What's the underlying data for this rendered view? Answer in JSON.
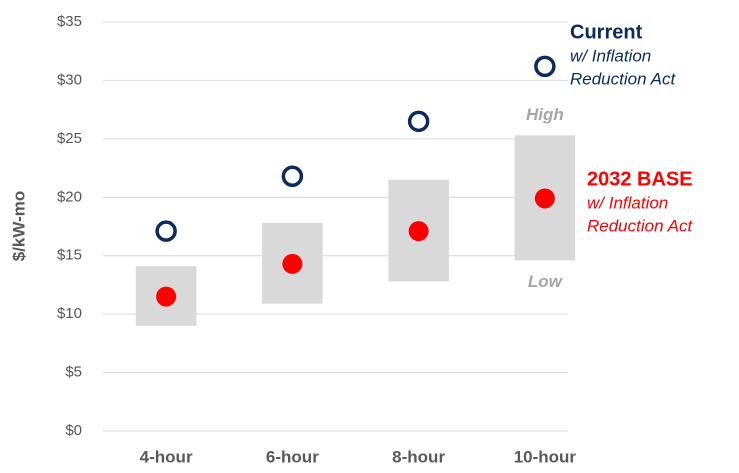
{
  "chart_data": {
    "type": "range-dot",
    "y_axis_label": "$/kW-mo",
    "categories": [
      "4-hour",
      "6-hour",
      "8-hour",
      "10-hour"
    ],
    "series": [
      {
        "name": "Current",
        "note": [
          "w/ Inflation",
          "Reduction Act"
        ],
        "color": "#0d2a5e",
        "marker": "open",
        "values": [
          17.1,
          21.8,
          26.5,
          31.2
        ]
      },
      {
        "name": "2032 BASE",
        "note": [
          "w/ Inflation",
          "Reduction Act"
        ],
        "color": "#ff0000",
        "marker": "filled",
        "values": [
          11.5,
          14.3,
          17.1,
          19.9
        ]
      }
    ],
    "range": {
      "color": "#d9d9d9",
      "high_label": "High",
      "low_label": "Low",
      "low": [
        9.0,
        10.9,
        12.8,
        14.6
      ],
      "high": [
        14.1,
        17.8,
        21.5,
        25.3
      ]
    },
    "ylim": [
      0,
      35
    ],
    "yticks": [
      {
        "value": 0,
        "label": "$0"
      },
      {
        "value": 5,
        "label": "$5"
      },
      {
        "value": 10,
        "label": "$10"
      },
      {
        "value": 15,
        "label": "$15"
      },
      {
        "value": 20,
        "label": "$20"
      },
      {
        "value": 25,
        "label": "$25"
      },
      {
        "value": 30,
        "label": "$30"
      },
      {
        "value": 35,
        "label": "$35"
      }
    ],
    "grid": true
  }
}
